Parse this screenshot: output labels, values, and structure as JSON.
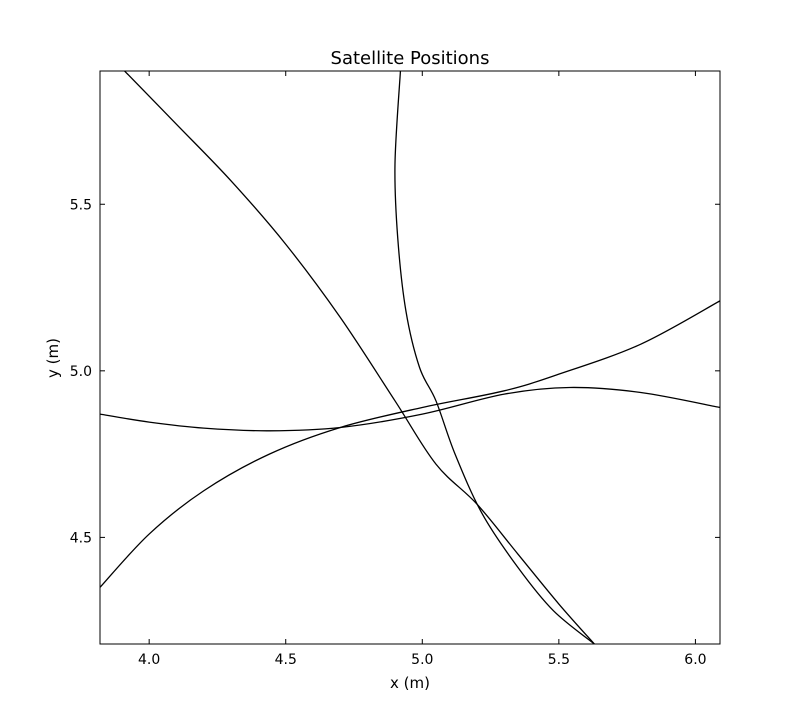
{
  "chart_data": {
    "type": "line",
    "title": "Satellite Positions",
    "xlabel": "x (m)",
    "ylabel": "y (m)",
    "xlim": [
      3.82,
      6.09
    ],
    "ylim": [
      4.18,
      5.9
    ],
    "xticks": [
      4.0,
      4.5,
      5.0,
      5.5,
      6.0
    ],
    "xtick_labels": [
      "4.0",
      "4.5",
      "5.0",
      "5.5",
      "6.0"
    ],
    "yticks": [
      4.5,
      5.0,
      5.5
    ],
    "ytick_labels": [
      "4.5",
      "5.0",
      "5.5"
    ],
    "grid": false,
    "legend": false,
    "line_color": "#000000",
    "series": [
      {
        "x": [
          3.91,
          4.1,
          4.3,
          4.5,
          4.7,
          4.9,
          5.05,
          5.2,
          5.35,
          5.5,
          5.63
        ],
        "y": [
          5.9,
          5.74,
          5.57,
          5.38,
          5.16,
          4.91,
          4.72,
          4.6,
          4.45,
          4.3,
          4.18
        ]
      },
      {
        "x": [
          4.92,
          4.9,
          4.91,
          4.94,
          4.99,
          5.05,
          5.12,
          5.22,
          5.35,
          5.48,
          5.63
        ],
        "y": [
          5.9,
          5.62,
          5.4,
          5.18,
          5.01,
          4.91,
          4.75,
          4.57,
          4.41,
          4.28,
          4.18
        ]
      },
      {
        "x": [
          3.82,
          4.0,
          4.2,
          4.44,
          4.7,
          5.0,
          5.3,
          5.54,
          5.8,
          6.09
        ],
        "y": [
          4.87,
          4.846,
          4.828,
          4.82,
          4.83,
          4.87,
          4.93,
          4.95,
          4.935,
          4.89
        ]
      },
      {
        "x": [
          3.82,
          4.0,
          4.2,
          4.44,
          4.7,
          5.0,
          5.3,
          5.5,
          5.8,
          6.09
        ],
        "y": [
          4.35,
          4.51,
          4.64,
          4.75,
          4.83,
          4.89,
          4.94,
          4.99,
          5.08,
          5.21
        ]
      }
    ]
  }
}
